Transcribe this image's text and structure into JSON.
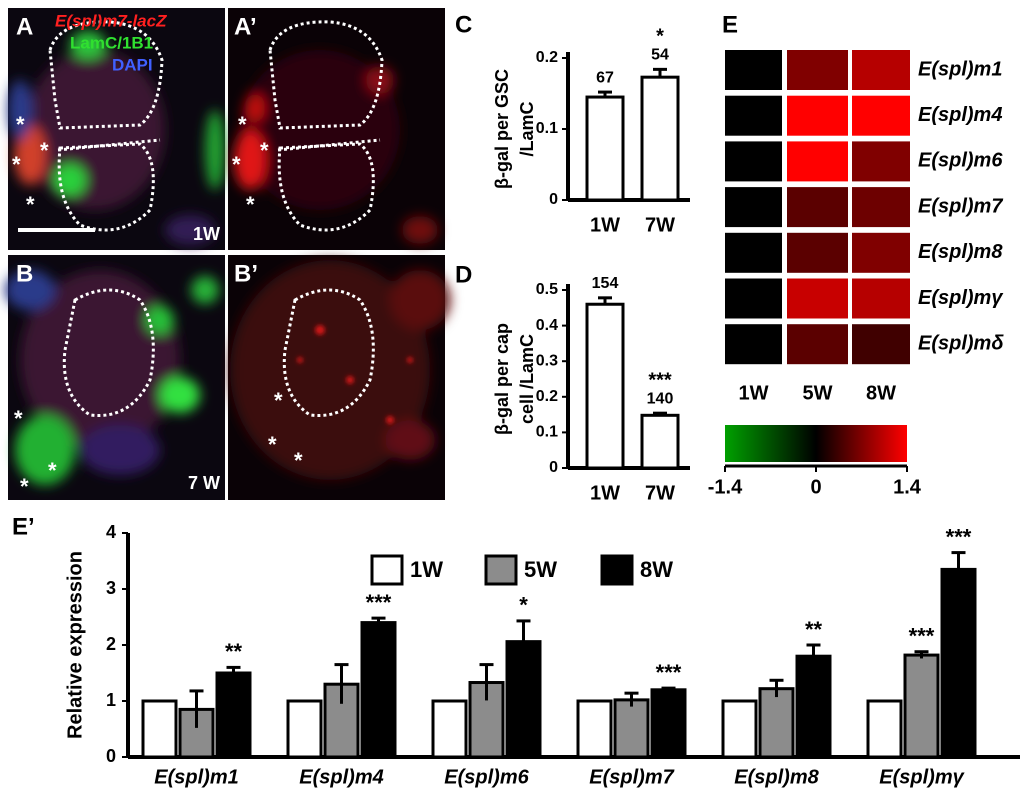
{
  "panels": {
    "A": {
      "label": "A",
      "stain1": "E(spl)m7-lacZ",
      "stain2": "LamC/1B1",
      "stain3": "DAPI",
      "time": "1W",
      "asterisks": [
        "*",
        "*",
        "*",
        "*"
      ]
    },
    "A2": {
      "label": "A’",
      "asterisks": [
        "*",
        "*",
        "*",
        "*"
      ]
    },
    "B": {
      "label": "B",
      "time": "7 W",
      "asterisks": [
        "*",
        "*",
        "*"
      ]
    },
    "B2": {
      "label": "B’",
      "asterisks": [
        "*",
        "*",
        "*"
      ]
    }
  },
  "chart_data": [
    {
      "type": "bar",
      "label": "C",
      "ylabel": [
        "β-gal per GSC",
        "/LamC"
      ],
      "categories": [
        "1W",
        "7W"
      ],
      "values": [
        0.145,
        0.173
      ],
      "errors": [
        0.007,
        0.011
      ],
      "n": [
        67,
        54
      ],
      "significance": [
        null,
        "*"
      ],
      "color": "#ffffff",
      "ylim": [
        0,
        0.2
      ],
      "yticks": [
        0,
        0.1,
        0.2
      ]
    },
    {
      "type": "bar",
      "label": "D",
      "ylabel": [
        "β-gal per cap",
        "cell /LamC"
      ],
      "categories": [
        "1W",
        "7W"
      ],
      "values": [
        0.46,
        0.148
      ],
      "errors": [
        0.018,
        0.006
      ],
      "n": [
        154,
        140
      ],
      "significance": [
        null,
        "***"
      ],
      "color": "#ffffff",
      "ylim": [
        0,
        0.5
      ],
      "yticks": [
        0,
        0.1,
        0.2,
        0.3,
        0.4,
        0.5
      ]
    },
    {
      "type": "heatmap",
      "label": "E",
      "rows": [
        "E(spl)m1",
        "E(spl)m4",
        "E(spl)m6",
        "E(spl)m7",
        "E(spl)m8",
        "E(spl)mγ",
        "E(spl)mδ"
      ],
      "columns": [
        "1W",
        "5W",
        "8W"
      ],
      "values": [
        [
          0,
          0.7,
          1.0
        ],
        [
          0,
          1.4,
          1.4
        ],
        [
          0,
          1.4,
          0.7
        ],
        [
          0,
          0.5,
          0.6
        ],
        [
          0,
          0.5,
          0.7
        ],
        [
          0,
          1.1,
          1.0
        ],
        [
          0,
          0.5,
          0.35
        ]
      ],
      "colorbar": {
        "lim": [
          -1.4,
          1.4
        ],
        "ticks": [
          -1.4,
          0,
          1.4
        ],
        "colors": [
          "#00a000",
          "#000000",
          "#ff0000"
        ]
      }
    },
    {
      "type": "grouped_bar",
      "label": "E’",
      "ylabel": "Relative expression",
      "categories": [
        "E(spl)m1",
        "E(spl)m4",
        "E(spl)m6",
        "E(spl)m7",
        "E(spl)m8",
        "E(spl)mγ"
      ],
      "series": [
        {
          "name": "1W",
          "color": "#ffffff",
          "values": [
            1,
            1,
            1,
            1,
            1,
            1
          ]
        },
        {
          "name": "5W",
          "color": "#8c8c8c",
          "values": [
            0.85,
            1.3,
            1.33,
            1.02,
            1.22,
            1.82
          ],
          "errors": [
            0.33,
            0.35,
            0.32,
            0.12,
            0.15,
            0.06
          ],
          "significance": [
            null,
            null,
            null,
            null,
            null,
            "***"
          ]
        },
        {
          "name": "8W",
          "color": "#000000",
          "values": [
            1.5,
            2.4,
            2.06,
            1.2,
            1.8,
            3.35
          ],
          "errors": [
            0.1,
            0.08,
            0.37,
            0.03,
            0.2,
            0.3
          ],
          "significance": [
            "**",
            "***",
            "*",
            "***",
            "**",
            "***"
          ]
        }
      ],
      "ylim": [
        0,
        4
      ],
      "yticks": [
        0,
        1,
        2,
        3,
        4
      ]
    }
  ]
}
